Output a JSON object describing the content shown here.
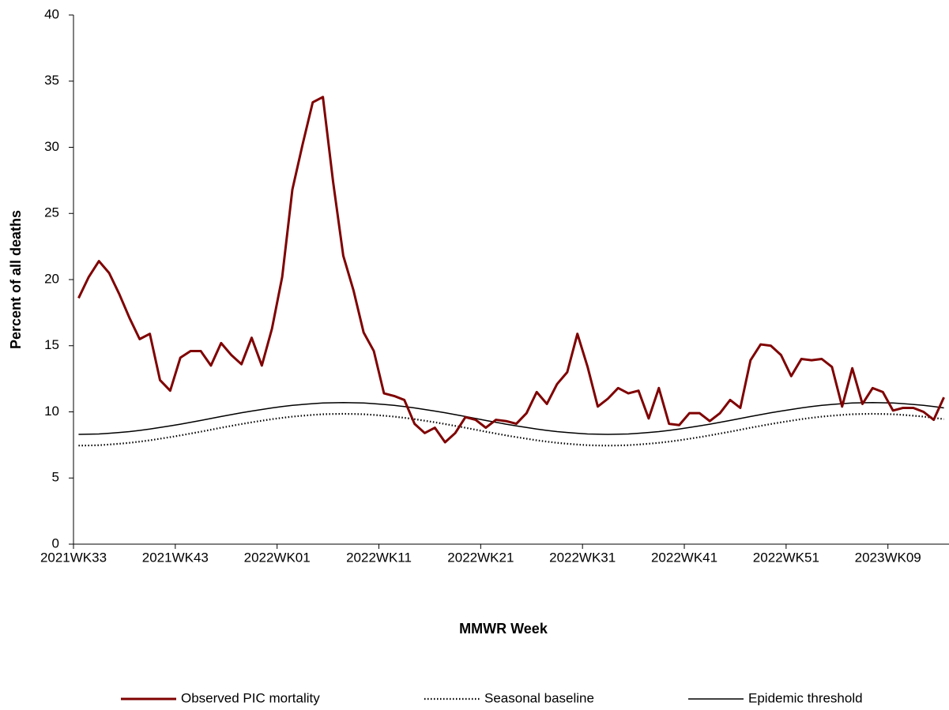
{
  "chart_data": {
    "type": "line",
    "x_label": "MMWR Week",
    "y_label": "Percent of all deaths",
    "categories": [
      "2021WK33",
      null,
      null,
      null,
      null,
      null,
      null,
      null,
      null,
      null,
      "2021WK43",
      null,
      null,
      null,
      null,
      null,
      null,
      null,
      null,
      null,
      "2022WK01",
      null,
      null,
      null,
      null,
      null,
      null,
      null,
      null,
      null,
      "2022WK11",
      null,
      null,
      null,
      null,
      null,
      null,
      null,
      null,
      null,
      "2022WK21",
      null,
      null,
      null,
      null,
      null,
      null,
      null,
      null,
      null,
      "2022WK31",
      null,
      null,
      null,
      null,
      null,
      null,
      null,
      null,
      null,
      "2022WK41",
      null,
      null,
      null,
      null,
      null,
      null,
      null,
      null,
      null,
      "2022WK51",
      null,
      null,
      null,
      null,
      null,
      null,
      null,
      null,
      null,
      "2023WK09",
      null,
      null,
      null,
      null,
      null
    ],
    "ylim": [
      0,
      40
    ],
    "yticks": [
      0,
      5,
      10,
      15,
      20,
      25,
      30,
      35,
      40
    ],
    "series": [
      {
        "name": "Observed PIC mortality",
        "color": "#7f0000",
        "values": [
          18.6,
          20.2,
          21.4,
          20.5,
          18.9,
          17.1,
          15.5,
          15.9,
          12.4,
          11.6,
          14.1,
          14.6,
          14.6,
          13.5,
          15.2,
          14.3,
          13.6,
          15.6,
          13.5,
          16.3,
          20.2,
          26.8,
          30.2,
          33.4,
          33.8,
          27.4,
          21.8,
          19.2,
          16.0,
          14.6,
          11.4,
          11.2,
          10.9,
          9.1,
          8.4,
          8.8,
          7.7,
          8.4,
          9.6,
          9.4,
          8.8,
          9.4,
          9.3,
          9.1,
          9.9,
          11.5,
          10.6,
          12.1,
          13.0,
          15.9,
          13.4,
          10.4,
          11.0,
          11.8,
          11.4,
          11.6,
          9.5,
          11.8,
          9.1,
          9.0,
          9.9,
          9.9,
          9.3,
          9.9,
          10.9,
          10.3,
          13.9,
          15.1,
          15.0,
          14.3,
          12.7,
          14.0,
          13.9,
          14.0,
          13.4,
          10.4,
          13.3,
          10.6,
          11.8,
          11.5,
          10.1,
          10.3,
          10.3,
          10.0,
          9.4,
          11.1
        ]
      },
      {
        "name": "Seasonal baseline",
        "color": "#000000",
        "values": [
          7.45,
          7.46,
          7.48,
          7.53,
          7.59,
          7.66,
          7.75,
          7.85,
          7.97,
          8.09,
          8.22,
          8.36,
          8.5,
          8.65,
          8.8,
          8.94,
          9.08,
          9.21,
          9.33,
          9.45,
          9.55,
          9.64,
          9.71,
          9.77,
          9.82,
          9.84,
          9.85,
          9.84,
          9.82,
          9.77,
          9.71,
          9.64,
          9.55,
          9.45,
          9.33,
          9.21,
          9.08,
          8.94,
          8.8,
          8.65,
          8.5,
          8.36,
          8.22,
          8.09,
          7.97,
          7.85,
          7.75,
          7.66,
          7.59,
          7.53,
          7.48,
          7.46,
          7.45,
          7.46,
          7.48,
          7.53,
          7.59,
          7.66,
          7.75,
          7.85,
          7.97,
          8.09,
          8.22,
          8.36,
          8.5,
          8.65,
          8.8,
          8.94,
          9.08,
          9.21,
          9.33,
          9.45,
          9.55,
          9.64,
          9.71,
          9.77,
          9.82,
          9.84,
          9.85,
          9.84,
          9.82,
          9.77,
          9.71,
          9.64,
          9.55,
          9.45
        ]
      },
      {
        "name": "Epidemic threshold",
        "color": "#000000",
        "values": [
          8.3,
          8.31,
          8.33,
          8.38,
          8.44,
          8.51,
          8.6,
          8.7,
          8.82,
          8.94,
          9.07,
          9.21,
          9.35,
          9.5,
          9.65,
          9.79,
          9.93,
          10.06,
          10.18,
          10.3,
          10.4,
          10.49,
          10.56,
          10.62,
          10.67,
          10.69,
          10.7,
          10.69,
          10.67,
          10.62,
          10.56,
          10.49,
          10.4,
          10.3,
          10.18,
          10.06,
          9.93,
          9.79,
          9.65,
          9.5,
          9.35,
          9.21,
          9.07,
          8.94,
          8.82,
          8.7,
          8.6,
          8.51,
          8.44,
          8.38,
          8.33,
          8.31,
          8.3,
          8.31,
          8.33,
          8.38,
          8.44,
          8.51,
          8.6,
          8.7,
          8.82,
          8.94,
          9.07,
          9.21,
          9.35,
          9.5,
          9.65,
          9.79,
          9.93,
          10.06,
          10.18,
          10.3,
          10.4,
          10.49,
          10.56,
          10.62,
          10.67,
          10.69,
          10.7,
          10.69,
          10.67,
          10.62,
          10.56,
          10.49,
          10.4,
          10.3
        ]
      }
    ]
  }
}
